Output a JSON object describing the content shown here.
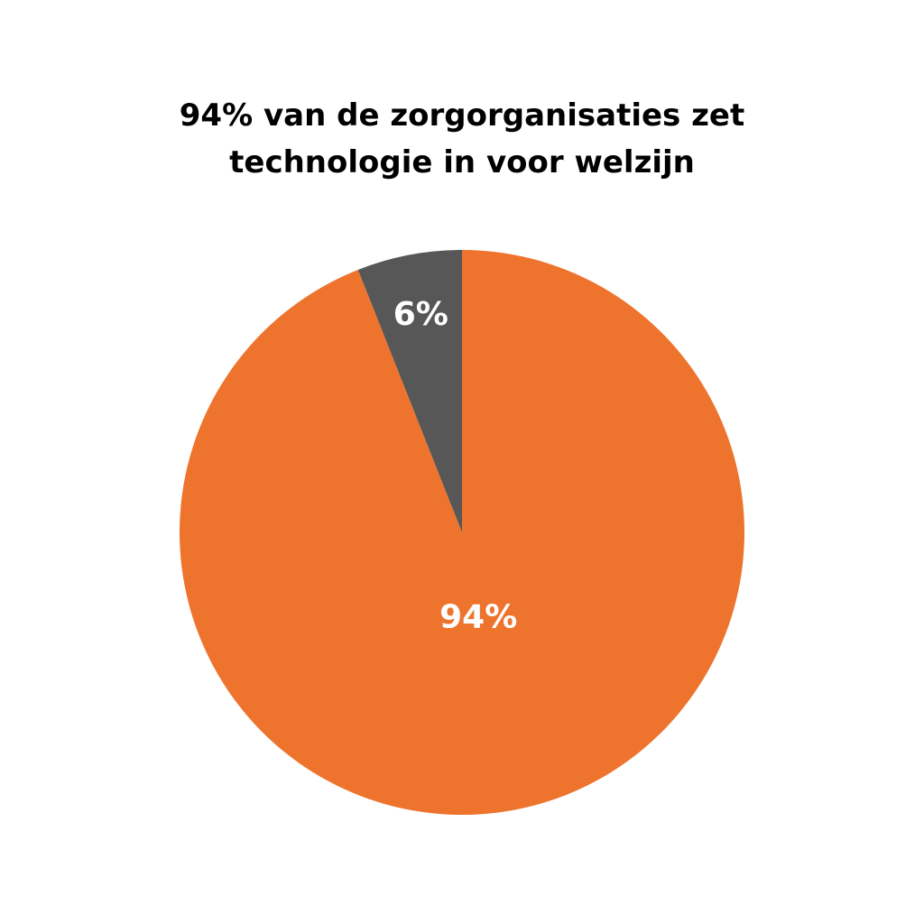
{
  "chart_data": {
    "type": "pie",
    "title": "94% van de zorgorganisaties zet technologie in voor welzijn",
    "values": [
      94,
      6
    ],
    "value_labels": [
      "94%",
      "6%"
    ],
    "colors": [
      "#ee742e",
      "#575757"
    ]
  }
}
